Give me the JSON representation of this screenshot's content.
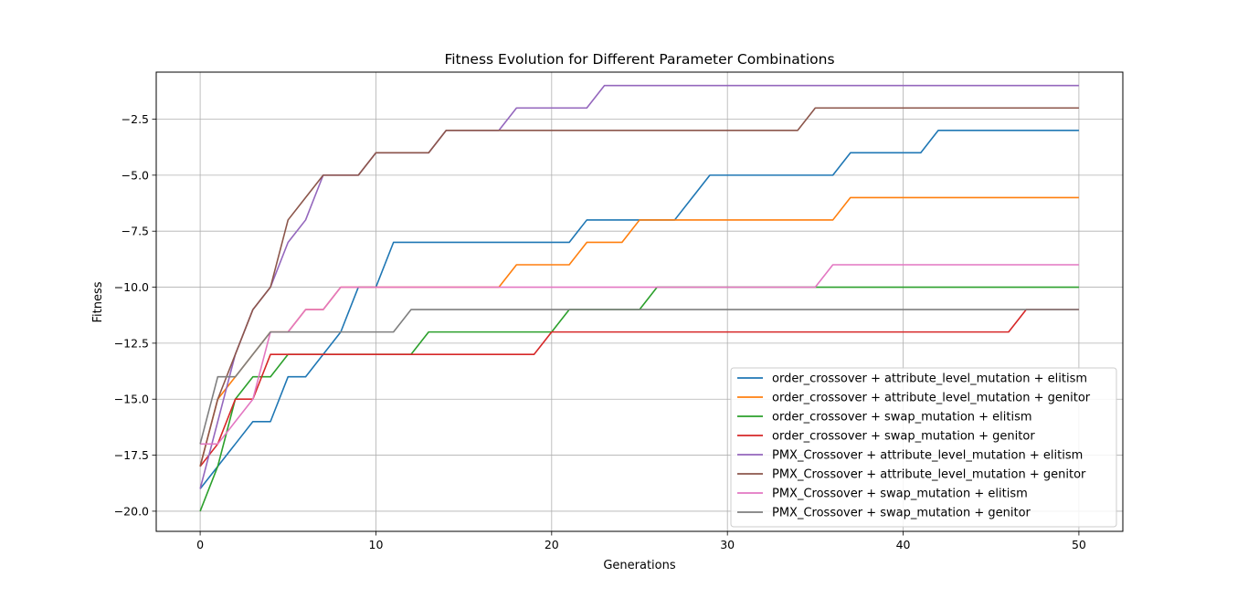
{
  "chart_data": {
    "type": "line",
    "title": "Fitness Evolution for Different Parameter Combinations",
    "xlabel": "Generations",
    "ylabel": "Fitness",
    "xlim": [
      -2.5,
      52.5
    ],
    "ylim": [
      -20.9,
      -0.4
    ],
    "xticks": [
      0,
      10,
      20,
      30,
      40,
      50
    ],
    "yticks": [
      -20.0,
      -17.5,
      -15.0,
      -12.5,
      -10.0,
      -7.5,
      -5.0,
      -2.5
    ],
    "xtick_labels": [
      "0",
      "10",
      "20",
      "30",
      "40",
      "50"
    ],
    "ytick_labels": [
      "−20.0",
      "−17.5",
      "−15.0",
      "−12.5",
      "−10.0",
      "−7.5",
      "−5.0",
      "−2.5"
    ],
    "grid": true,
    "legend_position": "lower-right",
    "x": [
      0,
      1,
      2,
      3,
      4,
      5,
      6,
      7,
      8,
      9,
      10,
      11,
      12,
      13,
      14,
      15,
      16,
      17,
      18,
      19,
      20,
      21,
      22,
      23,
      24,
      25,
      26,
      27,
      28,
      29,
      30,
      31,
      32,
      33,
      34,
      35,
      36,
      37,
      38,
      39,
      40,
      41,
      42,
      43,
      44,
      45,
      46,
      47,
      48,
      49,
      50
    ],
    "series": [
      {
        "name": "order_crossover + attribute_level_mutation + elitism",
        "color": "#1f77b4",
        "values": [
          -19,
          -18,
          -17,
          -16,
          -16,
          -14,
          -14,
          -13,
          -12,
          -10,
          -10,
          -8,
          -8,
          -8,
          -8,
          -8,
          -8,
          -8,
          -8,
          -8,
          -8,
          -8,
          -7,
          -7,
          -7,
          -7,
          -7,
          -7,
          -6,
          -5,
          -5,
          -5,
          -5,
          -5,
          -5,
          -5,
          -5,
          -4,
          -4,
          -4,
          -4,
          -4,
          -3,
          -3,
          -3,
          -3,
          -3,
          -3,
          -3,
          -3,
          -3
        ]
      },
      {
        "name": "order_crossover + attribute_level_mutation + genitor",
        "color": "#ff7f0e",
        "values": [
          -18,
          -15,
          -14,
          -13,
          -12,
          -12,
          -11,
          -11,
          -10,
          -10,
          -10,
          -10,
          -10,
          -10,
          -10,
          -10,
          -10,
          -10,
          -9,
          -9,
          -9,
          -9,
          -8,
          -8,
          -8,
          -7,
          -7,
          -7,
          -7,
          -7,
          -7,
          -7,
          -7,
          -7,
          -7,
          -7,
          -7,
          -6,
          -6,
          -6,
          -6,
          -6,
          -6,
          -6,
          -6,
          -6,
          -6,
          -6,
          -6,
          -6,
          -6
        ]
      },
      {
        "name": "order_crossover + swap_mutation + elitism",
        "color": "#2ca02c",
        "values": [
          -20,
          -18,
          -15,
          -14,
          -14,
          -13,
          -13,
          -13,
          -13,
          -13,
          -13,
          -13,
          -13,
          -12,
          -12,
          -12,
          -12,
          -12,
          -12,
          -12,
          -12,
          -11,
          -11,
          -11,
          -11,
          -11,
          -10,
          -10,
          -10,
          -10,
          -10,
          -10,
          -10,
          -10,
          -10,
          -10,
          -10,
          -10,
          -10,
          -10,
          -10,
          -10,
          -10,
          -10,
          -10,
          -10,
          -10,
          -10,
          -10,
          -10,
          -10
        ]
      },
      {
        "name": "order_crossover + swap_mutation + genitor",
        "color": "#d62728",
        "values": [
          -18,
          -17,
          -15,
          -15,
          -13,
          -13,
          -13,
          -13,
          -13,
          -13,
          -13,
          -13,
          -13,
          -13,
          -13,
          -13,
          -13,
          -13,
          -13,
          -13,
          -12,
          -12,
          -12,
          -12,
          -12,
          -12,
          -12,
          -12,
          -12,
          -12,
          -12,
          -12,
          -12,
          -12,
          -12,
          -12,
          -12,
          -12,
          -12,
          -12,
          -12,
          -12,
          -12,
          -12,
          -12,
          -12,
          -12,
          -11,
          -11,
          -11,
          -11
        ]
      },
      {
        "name": "PMX_Crossover + attribute_level_mutation + elitism",
        "color": "#9467bd",
        "values": [
          -19,
          -16,
          -13,
          -11,
          -10,
          -8,
          -7,
          -5,
          -5,
          -5,
          -4,
          -4,
          -4,
          -4,
          -3,
          -3,
          -3,
          -3,
          -2,
          -2,
          -2,
          -2,
          -2,
          -1,
          -1,
          -1,
          -1,
          -1,
          -1,
          -1,
          -1,
          -1,
          -1,
          -1,
          -1,
          -1,
          -1,
          -1,
          -1,
          -1,
          -1,
          -1,
          -1,
          -1,
          -1,
          -1,
          -1,
          -1,
          -1,
          -1,
          -1
        ]
      },
      {
        "name": "PMX_Crossover + attribute_level_mutation + genitor",
        "color": "#8c564b",
        "values": [
          -18,
          -15,
          -13,
          -11,
          -10,
          -7,
          -6,
          -5,
          -5,
          -5,
          -4,
          -4,
          -4,
          -4,
          -3,
          -3,
          -3,
          -3,
          -3,
          -3,
          -3,
          -3,
          -3,
          -3,
          -3,
          -3,
          -3,
          -3,
          -3,
          -3,
          -3,
          -3,
          -3,
          -3,
          -3,
          -2,
          -2,
          -2,
          -2,
          -2,
          -2,
          -2,
          -2,
          -2,
          -2,
          -2,
          -2,
          -2,
          -2,
          -2,
          -2
        ]
      },
      {
        "name": "PMX_Crossover + swap_mutation + elitism",
        "color": "#e377c2",
        "values": [
          -17,
          -17,
          -16,
          -15,
          -12,
          -12,
          -11,
          -11,
          -10,
          -10,
          -10,
          -10,
          -10,
          -10,
          -10,
          -10,
          -10,
          -10,
          -10,
          -10,
          -10,
          -10,
          -10,
          -10,
          -10,
          -10,
          -10,
          -10,
          -10,
          -10,
          -10,
          -10,
          -10,
          -10,
          -10,
          -10,
          -9,
          -9,
          -9,
          -9,
          -9,
          -9,
          -9,
          -9,
          -9,
          -9,
          -9,
          -9,
          -9,
          -9,
          -9
        ]
      },
      {
        "name": "PMX_Crossover + swap_mutation + genitor",
        "color": "#7f7f7f",
        "values": [
          -17,
          -14,
          -14,
          -13,
          -12,
          -12,
          -12,
          -12,
          -12,
          -12,
          -12,
          -12,
          -11,
          -11,
          -11,
          -11,
          -11,
          -11,
          -11,
          -11,
          -11,
          -11,
          -11,
          -11,
          -11,
          -11,
          -11,
          -11,
          -11,
          -11,
          -11,
          -11,
          -11,
          -11,
          -11,
          -11,
          -11,
          -11,
          -11,
          -11,
          -11,
          -11,
          -11,
          -11,
          -11,
          -11,
          -11,
          -11,
          -11,
          -11,
          -11
        ]
      }
    ]
  }
}
